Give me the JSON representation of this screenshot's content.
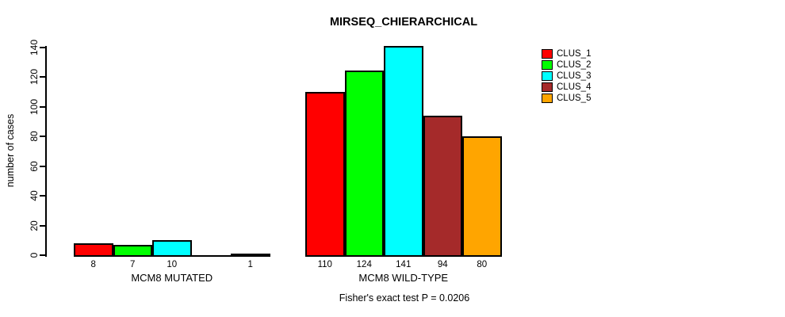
{
  "title": "MIRSEQ_CHIERARCHICAL",
  "subtitle": "Fisher's exact test P = 0.0206",
  "chart_data": {
    "type": "bar",
    "title": "MIRSEQ_CHIERARCHICAL",
    "xlabel": "",
    "ylabel": "number of cases",
    "ylim": [
      0,
      140
    ],
    "yticks": [
      0,
      20,
      40,
      60,
      80,
      100,
      120,
      140
    ],
    "grid": false,
    "legend_position": "top-right",
    "series": [
      {
        "name": "CLUS_1",
        "color": "#FF0000"
      },
      {
        "name": "CLUS_2",
        "color": "#00FF00"
      },
      {
        "name": "CLUS_3",
        "color": "#00FFFF"
      },
      {
        "name": "CLUS_4",
        "color": "#A52A2A"
      },
      {
        "name": "CLUS_5",
        "color": "#FFA500"
      }
    ],
    "groups": [
      {
        "label": "MCM8 MUTATED",
        "values": [
          8,
          7,
          10,
          0,
          1
        ]
      },
      {
        "label": "MCM8 WILD-TYPE",
        "values": [
          110,
          124,
          141,
          94,
          80
        ]
      }
    ],
    "annotation": "Fisher's exact test P = 0.0206"
  }
}
